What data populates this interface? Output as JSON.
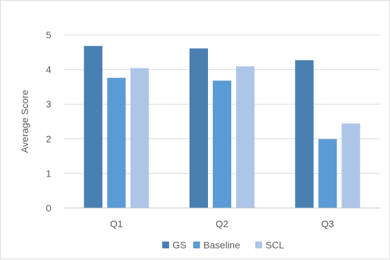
{
  "chart_data": {
    "type": "bar",
    "title": "",
    "xlabel": "",
    "ylabel": "Average Score",
    "ylim": [
      0,
      5
    ],
    "yticks": [
      0,
      1,
      2,
      3,
      4,
      5
    ],
    "grid": true,
    "legend_position": "bottom",
    "categories": [
      "Q1",
      "Q2",
      "Q3"
    ],
    "series": [
      {
        "name": "GS",
        "color": "#4a7fb2",
        "values": [
          4.68,
          4.61,
          4.27
        ]
      },
      {
        "name": "Baseline",
        "color": "#5b9bd5",
        "values": [
          3.76,
          3.68,
          1.99
        ]
      },
      {
        "name": "SCL",
        "color": "#adc6e7",
        "values": [
          4.04,
          4.09,
          2.44
        ]
      }
    ]
  }
}
